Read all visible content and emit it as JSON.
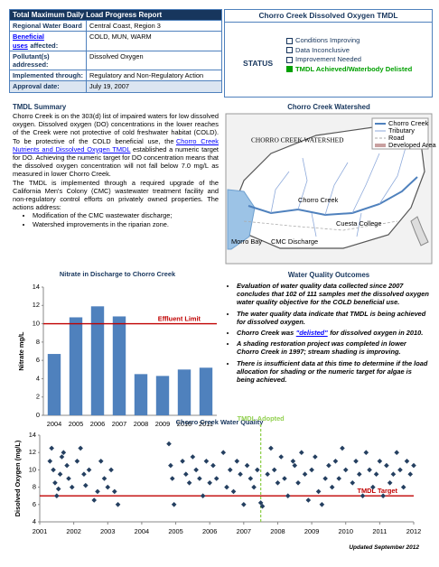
{
  "header": {
    "title": "Total Maximum Daily Load Progress Report",
    "rows": [
      {
        "label": "Regional Water Board",
        "value": "Central Coast, Region 3"
      },
      {
        "label_link": "Beneficial uses",
        "label": "affected:",
        "value": "COLD, MUN, WARM"
      },
      {
        "label": "Pollutant(s) addressed:",
        "value": "Dissolved Oxygen"
      },
      {
        "label": "Implemented through:",
        "value": "Regulatory and Non-Regulatory Action"
      },
      {
        "label": "Approval date:",
        "value": "July 19, 2007"
      }
    ]
  },
  "status": {
    "title": "Chorro Creek Dissolved Oxygen TMDL",
    "label": "STATUS",
    "options": [
      {
        "text": "Conditions Improving",
        "checked": false
      },
      {
        "text": "Data Inconclusive",
        "checked": false
      },
      {
        "text": "Improvement Needed",
        "checked": false
      },
      {
        "text": "TMDL Achieved/Waterbody Delisted",
        "checked": true
      }
    ]
  },
  "summary": {
    "heading": "TMDL Summary",
    "p1_before": "Chorro Creek is on the 303(d) list of impaired waters for low dissolved oxygen. Dissolved oxygen (DO) concentrations in the lower reaches of the Creek were not protective of cold freshwater habitat (COLD). To be protective of the COLD beneficial use, the",
    "p1_link": "Chorro Creek Nutrients and Dissolved Oxygen TMDL",
    "p1_after": "established a numeric target for DO. Achieving the numeric target for DO concentration means that the dissolved oxygen concentration will not fall below 7.0 mg/L as measured in lower Chorro Creek.",
    "p2": "The TMDL is implemented through a required upgrade of the California Men's Colony (CMC) wastewater treatment facility and non-regulatory control efforts on privately owned properties. The actions address:",
    "bullets": [
      "Modification of the CMC wastewater discharge;",
      "Watershed improvements in the riparian zone."
    ]
  },
  "map": {
    "title": "Chorro Creek Watershed",
    "name": "CHORRO CREEK WATERSHED",
    "legend": [
      "Chorro Creek",
      "Tributary",
      "Road",
      "Developed Area"
    ],
    "labels": [
      "Morro Bay",
      "Chorro Creek",
      "CMC Discharge",
      "Cuesta College"
    ]
  },
  "outcomes": {
    "heading": "Water Quality Outcomes",
    "bullets": [
      {
        "text": "Evaluation of water quality data collected since 2007 concludes that 102 of 111 samples met the dissolved oxygen water quality objective for the COLD beneficial use."
      },
      {
        "text": "The water quality data indicate that TMDL is being achieved for dissolved oxygen."
      },
      {
        "before": "Chorro Creek was",
        "link": "\"delisted\"",
        "after": "for dissolved oxygen in 2010."
      },
      {
        "text": "A shading restoration project was completed in lower Chorro Creek in 1997; stream shading is improving."
      },
      {
        "text": "There is insufficient data at this time to determine if the load allocation for shading or the numeric target for algae is being achieved."
      }
    ]
  },
  "chart_data": [
    {
      "type": "bar",
      "title": "Nitrate in Discharge to Chorro Creek",
      "y_label": "Nitrate mg/L",
      "categories": [
        "2004",
        "2005",
        "2006",
        "2007",
        "2008",
        "2009",
        "2010",
        "2011"
      ],
      "values": [
        6.7,
        10.7,
        11.9,
        10.8,
        4.5,
        4.3,
        5.0,
        5.2
      ],
      "color": "#4f81bd",
      "ylim": [
        0,
        14
      ],
      "yticks": [
        0,
        2,
        4,
        6,
        8,
        10,
        12,
        14
      ],
      "reference_lines": [
        {
          "value": 10,
          "label": "Effluent Limit",
          "color": "#c00000"
        }
      ]
    },
    {
      "type": "scatter",
      "title": "Chorro Creek Water Quality",
      "y_label": "Disolved Oxygen (mg/L)",
      "color": "#243f60",
      "x": [
        2001.3,
        2001.35,
        2001.4,
        2001.45,
        2001.5,
        2001.55,
        2001.6,
        2001.65,
        2001.7,
        2001.8,
        2001.85,
        2001.95,
        2002.1,
        2002.2,
        2002.3,
        2002.35,
        2002.45,
        2002.6,
        2002.7,
        2002.8,
        2002.9,
        2003.0,
        2003.1,
        2003.2,
        2003.3,
        2004.8,
        2004.85,
        2004.9,
        2004.95,
        2005.2,
        2005.3,
        2005.4,
        2005.5,
        2005.6,
        2005.7,
        2005.8,
        2005.9,
        2006.0,
        2006.1,
        2006.2,
        2006.4,
        2006.5,
        2006.6,
        2006.7,
        2006.8,
        2006.9,
        2007.0,
        2007.1,
        2007.2,
        2007.3,
        2007.4,
        2007.5,
        2007.55,
        2007.7,
        2007.8,
        2007.9,
        2008.0,
        2008.1,
        2008.2,
        2008.3,
        2008.45,
        2008.5,
        2008.6,
        2008.7,
        2008.8,
        2008.9,
        2009.0,
        2009.1,
        2009.2,
        2009.3,
        2009.4,
        2009.5,
        2009.6,
        2009.7,
        2009.8,
        2009.9,
        2010.0,
        2010.2,
        2010.3,
        2010.4,
        2010.5,
        2010.6,
        2010.7,
        2010.8,
        2010.9,
        2011.0,
        2011.1,
        2011.2,
        2011.3,
        2011.4,
        2011.5,
        2011.6,
        2011.7,
        2011.8,
        2011.9,
        2012.0
      ],
      "values": [
        11,
        12.5,
        10,
        8.5,
        7,
        7.8,
        9.5,
        11.5,
        12,
        10.5,
        9,
        8,
        11,
        12.5,
        9.5,
        8.2,
        10,
        6.5,
        7.5,
        11,
        9,
        8,
        10,
        7.5,
        6,
        13,
        10.5,
        9,
        6,
        11,
        9.5,
        8.5,
        11.5,
        10,
        9,
        7,
        11,
        8.5,
        10.5,
        9,
        12,
        8,
        10,
        7.5,
        11,
        9.5,
        6,
        10.5,
        9,
        8,
        10,
        6.2,
        5.8,
        9.5,
        12.5,
        10,
        8.5,
        11.5,
        9,
        7,
        11,
        10.5,
        8.5,
        12,
        9.5,
        6.5,
        10,
        11.5,
        7.5,
        6,
        9,
        10.5,
        8,
        11,
        9,
        12.5,
        10,
        8.5,
        11,
        9.5,
        7,
        12,
        10,
        8,
        9.5,
        11,
        7,
        10.5,
        8.5,
        9.5,
        12,
        10,
        8,
        11,
        9.5,
        10.5
      ],
      "xlim": [
        2001,
        2012
      ],
      "xticks": [
        2001,
        2002,
        2003,
        2004,
        2005,
        2006,
        2007,
        2008,
        2009,
        2010,
        2011,
        2012
      ],
      "ylim": [
        4,
        14
      ],
      "yticks": [
        4,
        6,
        8,
        10,
        12,
        14
      ],
      "reference_lines": [
        {
          "value": 7,
          "label": "TMDL Target",
          "color": "#c00000"
        }
      ],
      "vertical_lines": [
        {
          "value": 2007.5,
          "label": "TMDL Adopted",
          "color": "#92d050"
        }
      ]
    }
  ],
  "footer": "Updated September 2012"
}
